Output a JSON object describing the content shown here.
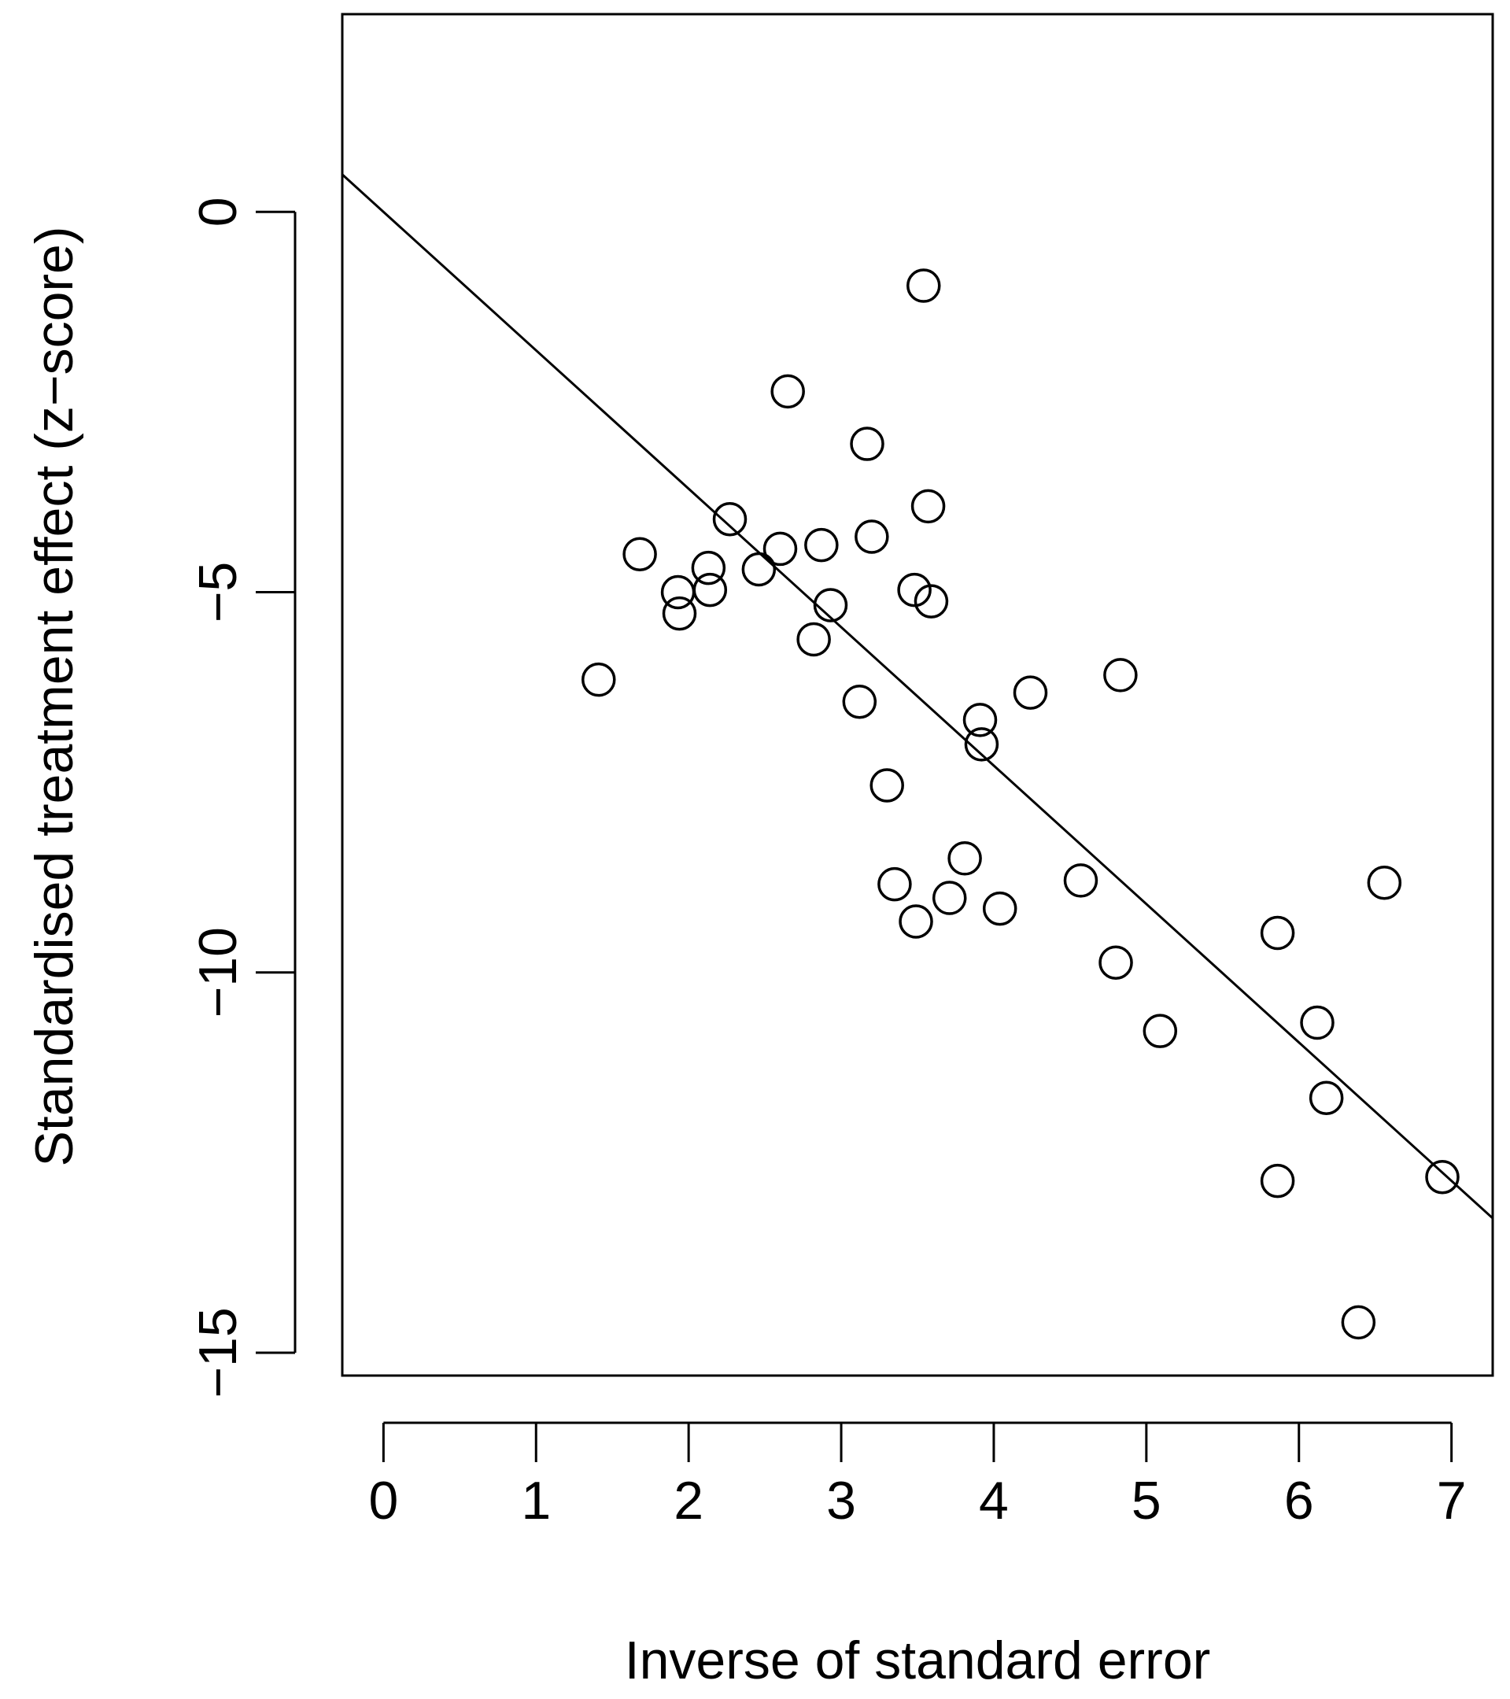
{
  "chart_data": {
    "type": "scatter",
    "xlabel": "Inverse of standard error",
    "ylabel": "Standardised treatment effect (z−score)",
    "xlim": [
      -0.27,
      7.27
    ],
    "ylim": [
      -15.3,
      2.6
    ],
    "x_ticks": [
      0,
      1,
      2,
      3,
      4,
      5,
      6,
      7
    ],
    "x_tick_labels": [
      "0",
      "1",
      "2",
      "3",
      "4",
      "5",
      "6",
      "7"
    ],
    "y_ticks": [
      0,
      -5,
      -10,
      -15
    ],
    "y_tick_labels": [
      "0",
      "−5",
      "−10",
      "−15"
    ],
    "grid": false,
    "marker": "open-circle",
    "regression_line": {
      "intercept": 0,
      "slope": -1.82
    },
    "points": [
      {
        "x": 1.41,
        "y": -6.15
      },
      {
        "x": 1.68,
        "y": -4.5
      },
      {
        "x": 1.93,
        "y": -5.0
      },
      {
        "x": 1.94,
        "y": -5.28
      },
      {
        "x": 2.13,
        "y": -4.68
      },
      {
        "x": 2.14,
        "y": -4.97
      },
      {
        "x": 2.27,
        "y": -4.04
      },
      {
        "x": 2.46,
        "y": -4.7
      },
      {
        "x": 2.6,
        "y": -4.43
      },
      {
        "x": 2.65,
        "y": -2.36
      },
      {
        "x": 2.82,
        "y": -5.62
      },
      {
        "x": 2.87,
        "y": -4.38
      },
      {
        "x": 2.93,
        "y": -5.17
      },
      {
        "x": 3.12,
        "y": -6.44
      },
      {
        "x": 3.17,
        "y": -3.05
      },
      {
        "x": 3.2,
        "y": -4.27
      },
      {
        "x": 3.3,
        "y": -7.54
      },
      {
        "x": 3.35,
        "y": -8.84
      },
      {
        "x": 3.48,
        "y": -4.97
      },
      {
        "x": 3.49,
        "y": -9.33
      },
      {
        "x": 3.54,
        "y": -0.97
      },
      {
        "x": 3.57,
        "y": -3.87
      },
      {
        "x": 3.59,
        "y": -5.12
      },
      {
        "x": 3.71,
        "y": -9.02
      },
      {
        "x": 3.81,
        "y": -8.5
      },
      {
        "x": 3.91,
        "y": -6.68
      },
      {
        "x": 3.92,
        "y": -7.0
      },
      {
        "x": 4.04,
        "y": -9.16
      },
      {
        "x": 4.24,
        "y": -6.32
      },
      {
        "x": 4.57,
        "y": -8.79
      },
      {
        "x": 4.8,
        "y": -9.87
      },
      {
        "x": 4.83,
        "y": -6.09
      },
      {
        "x": 5.09,
        "y": -10.77
      },
      {
        "x": 5.86,
        "y": -9.48
      },
      {
        "x": 5.86,
        "y": -12.74
      },
      {
        "x": 6.12,
        "y": -10.66
      },
      {
        "x": 6.18,
        "y": -11.65
      },
      {
        "x": 6.39,
        "y": -14.6
      },
      {
        "x": 6.56,
        "y": -8.82
      },
      {
        "x": 6.94,
        "y": -12.69
      }
    ]
  }
}
